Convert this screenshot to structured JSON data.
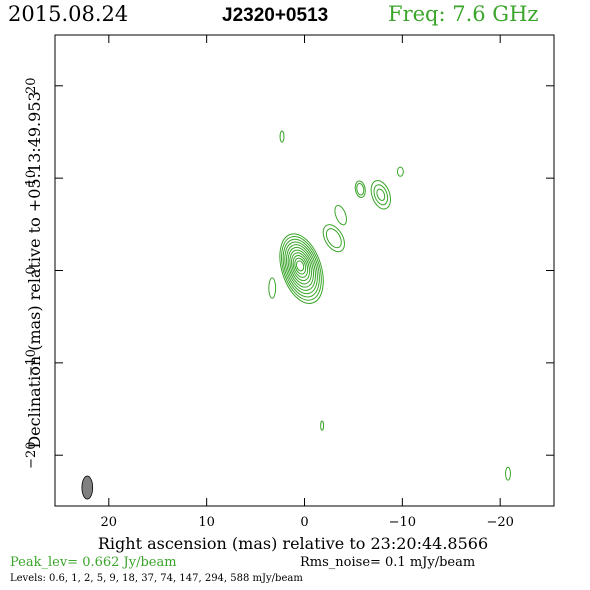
{
  "header": {
    "date": "2015.08.24",
    "source": "J2320+0513",
    "freq": "Freq: 7.6 GHz"
  },
  "footer": {
    "peak": "Peak_lev=  0.662 Jy/beam",
    "rms": "Rms_noise=  0.1 mJy/beam",
    "levels": "Levels: 0.6,    1,    2,    5,    9,   18,   37,   74,  147,  294,  588 mJy/beam"
  },
  "colors": {
    "contour": "#3aa52a",
    "beam": "#808080",
    "axis": "#000000"
  },
  "chart_data": {
    "type": "contour",
    "xlabel": "Right ascension (mas) relative to 23:20:44.8566",
    "ylabel": "Declination (mas) relative to +05:13:49.953",
    "xlim": [
      25.5,
      -25.5
    ],
    "ylim": [
      -25.5,
      25.5
    ],
    "xticks": [
      20,
      10,
      0,
      -10,
      -20
    ],
    "yticks": [
      20,
      10,
      0,
      -10,
      -20
    ],
    "xtick_labels": [
      "20",
      "10",
      "0",
      "−10",
      "−20"
    ],
    "ytick_labels": [
      "20",
      "10",
      "0",
      "−10",
      "−20"
    ],
    "peak_jy_per_beam": 0.662,
    "rms_mjy_per_beam": 0.1,
    "levels_mjy_per_beam": [
      0.6,
      1,
      2,
      5,
      9,
      18,
      37,
      74,
      147,
      294,
      588
    ],
    "core": {
      "x": 0.3,
      "y": 0.2,
      "outer_ra": 2.0,
      "outer_dec": 3.9,
      "inner_ra": 0.35,
      "inner_dec": 0.55,
      "pa_deg": -18
    },
    "jet_components": [
      {
        "x": -3.0,
        "y": 3.5,
        "ra": 0.9,
        "dec": 1.6,
        "pa_deg": -30,
        "rings": 2
      },
      {
        "x": -3.7,
        "y": 6.0,
        "ra": 0.5,
        "dec": 1.1,
        "pa_deg": -20,
        "rings": 1
      },
      {
        "x": -5.7,
        "y": 8.8,
        "ra": 0.5,
        "dec": 0.9,
        "pa_deg": -10,
        "rings": 2
      },
      {
        "x": -7.8,
        "y": 8.2,
        "ra": 0.9,
        "dec": 1.6,
        "pa_deg": -20,
        "rings": 3
      },
      {
        "x": -9.8,
        "y": 10.7,
        "ra": 0.3,
        "dec": 0.5,
        "pa_deg": 0,
        "rings": 1
      }
    ],
    "noise_blobs": [
      {
        "x": 2.3,
        "y": 14.5,
        "ra": 0.2,
        "dec": 0.6
      },
      {
        "x": 3.3,
        "y": -1.9,
        "ra": 0.35,
        "dec": 1.1
      },
      {
        "x": -1.8,
        "y": -16.8,
        "ra": 0.15,
        "dec": 0.5
      },
      {
        "x": -20.8,
        "y": -22.0,
        "ra": 0.25,
        "dec": 0.7
      }
    ],
    "beam": {
      "x": 22.2,
      "y": -23.5,
      "bmaj_mas": 2.5,
      "bmin_mas": 1.1,
      "pa_deg": 0
    }
  }
}
